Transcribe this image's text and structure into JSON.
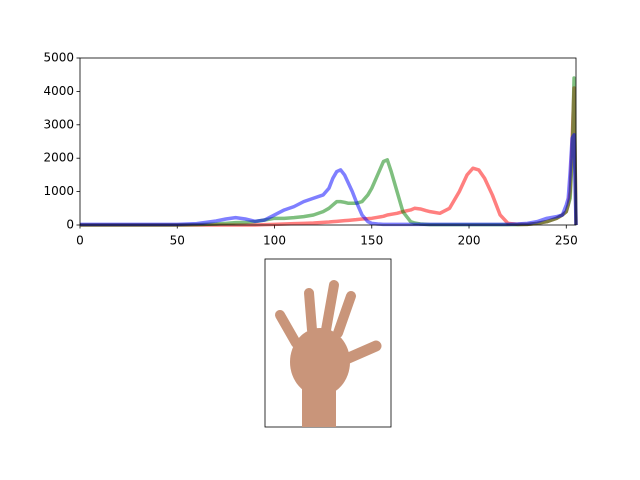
{
  "chart_data": {
    "type": "line",
    "x": [
      0,
      10,
      20,
      30,
      40,
      50,
      60,
      70,
      75,
      80,
      85,
      90,
      95,
      100,
      105,
      110,
      115,
      120,
      125,
      128,
      130,
      132,
      134,
      136,
      138,
      140,
      142,
      145,
      148,
      150,
      153,
      156,
      158,
      160,
      163,
      166,
      170,
      172,
      175,
      178,
      180,
      185,
      190,
      195,
      199,
      202,
      205,
      208,
      212,
      216,
      220,
      225,
      230,
      235,
      240,
      245,
      248,
      250,
      251,
      252,
      253,
      254,
      255
    ],
    "series": [
      {
        "color": "#ff0000",
        "values": [
          0,
          0,
          0,
          0,
          0,
          0,
          0,
          0,
          0,
          0,
          0,
          0,
          10,
          20,
          30,
          40,
          50,
          60,
          80,
          90,
          100,
          110,
          120,
          130,
          140,
          150,
          160,
          180,
          190,
          200,
          230,
          260,
          300,
          320,
          350,
          400,
          450,
          500,
          480,
          430,
          400,
          350,
          500,
          1000,
          1500,
          1700,
          1650,
          1400,
          900,
          300,
          50,
          20,
          20,
          50,
          100,
          200,
          300,
          400,
          600,
          1000,
          2500,
          4100,
          0
        ]
      },
      {
        "color": "#008000",
        "values": [
          0,
          0,
          0,
          0,
          0,
          0,
          10,
          30,
          50,
          70,
          80,
          100,
          150,
          200,
          200,
          220,
          250,
          300,
          400,
          500,
          600,
          700,
          700,
          680,
          650,
          650,
          650,
          700,
          900,
          1100,
          1500,
          1900,
          1950,
          1600,
          1000,
          400,
          100,
          60,
          30,
          20,
          10,
          10,
          10,
          10,
          10,
          10,
          10,
          10,
          10,
          10,
          10,
          10,
          20,
          50,
          100,
          200,
          300,
          400,
          600,
          800,
          2000,
          4400,
          0
        ]
      },
      {
        "color": "#0000ff",
        "values": [
          20,
          20,
          20,
          20,
          20,
          20,
          40,
          120,
          180,
          220,
          180,
          110,
          150,
          300,
          450,
          550,
          700,
          800,
          900,
          1100,
          1400,
          1600,
          1650,
          1500,
          1250,
          1000,
          700,
          300,
          100,
          50,
          30,
          20,
          20,
          20,
          20,
          20,
          20,
          20,
          20,
          20,
          20,
          20,
          20,
          20,
          20,
          20,
          20,
          20,
          20,
          20,
          20,
          30,
          50,
          100,
          200,
          250,
          300,
          600,
          800,
          1600,
          2600,
          2700,
          0
        ]
      }
    ],
    "xlim": [
      0,
      255
    ],
    "xticks": [
      0,
      50,
      100,
      150,
      200,
      250
    ],
    "ylim": [
      0,
      5000
    ],
    "yticks": [
      0,
      1000,
      2000,
      3000,
      4000,
      5000
    ]
  }
}
